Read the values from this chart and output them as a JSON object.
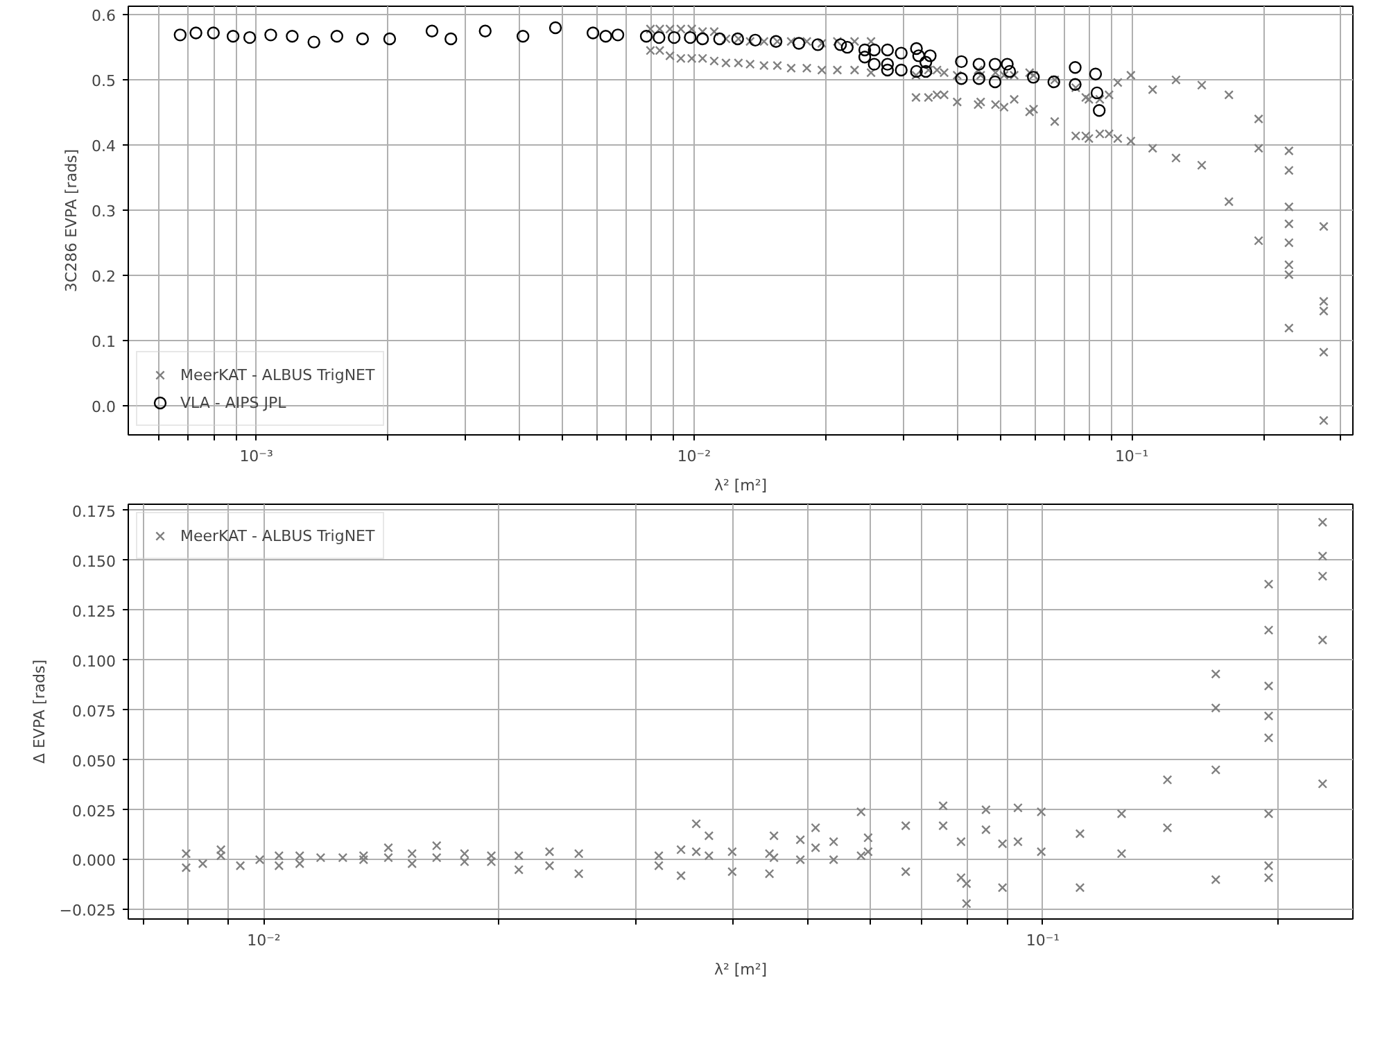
{
  "chart_data": [
    {
      "type": "scatter",
      "xlabel": "λ² [m²]",
      "ylabel": "3C286 EVPA [rads]",
      "log": "x",
      "grid": true,
      "legend": "bottom left",
      "xlim": [
        0.00051,
        0.32
      ],
      "ylim": [
        -0.045,
        0.613
      ],
      "xticks": [
        {
          "value": 0.0006,
          "label": null
        },
        {
          "value": 0.0007,
          "label": null
        },
        {
          "value": 0.0008,
          "label": null
        },
        {
          "value": 0.0009,
          "label": null
        },
        {
          "value": 0.001,
          "label": "10⁻³"
        },
        {
          "value": 0.002,
          "label": null
        },
        {
          "value": 0.003,
          "label": null
        },
        {
          "value": 0.004,
          "label": null
        },
        {
          "value": 0.005,
          "label": null
        },
        {
          "value": 0.006,
          "label": null
        },
        {
          "value": 0.007,
          "label": null
        },
        {
          "value": 0.008,
          "label": null
        },
        {
          "value": 0.009,
          "label": null
        },
        {
          "value": 0.01,
          "label": "10⁻²"
        },
        {
          "value": 0.02,
          "label": null
        },
        {
          "value": 0.03,
          "label": null
        },
        {
          "value": 0.04,
          "label": null
        },
        {
          "value": 0.05,
          "label": null
        },
        {
          "value": 0.06,
          "label": null
        },
        {
          "value": 0.07,
          "label": null
        },
        {
          "value": 0.08,
          "label": null
        },
        {
          "value": 0.09,
          "label": null
        },
        {
          "value": 0.1,
          "label": "10⁻¹"
        },
        {
          "value": 0.2,
          "label": null
        },
        {
          "value": 0.3,
          "label": null
        }
      ],
      "yticks": [
        {
          "value": 0,
          "label": "0.0"
        },
        {
          "value": 0.1,
          "label": "0.1"
        },
        {
          "value": 0.2,
          "label": "0.2"
        },
        {
          "value": 0.3,
          "label": "0.3"
        },
        {
          "value": 0.4,
          "label": "0.4"
        },
        {
          "value": 0.5,
          "label": "0.5"
        },
        {
          "value": 0.6,
          "label": "0.6"
        }
      ],
      "series": [
        {
          "name": "MeerKAT - ALBUS TrigNET",
          "color": "#808080",
          "marker": "cross",
          "x": [
            0.00795,
            0.00795,
            0.00835,
            0.00835,
            0.00881,
            0.00881,
            0.00933,
            0.00933,
            0.00988,
            0.00988,
            0.01046,
            0.01046,
            0.01112,
            0.01112,
            0.01183,
            0.01183,
            0.01263,
            0.01263,
            0.01343,
            0.01343,
            0.01445,
            0.01445,
            0.0155,
            0.0155,
            0.01667,
            0.01667,
            0.0181,
            0.0181,
            0.01959,
            0.01959,
            0.02125,
            0.02125,
            0.02327,
            0.02327,
            0.02537,
            0.02537,
            0.03214,
            0.03214,
            0.03432,
            0.03432,
            0.0359,
            0.0359,
            0.03727,
            0.03727,
            0.03992,
            0.03992,
            0.04457,
            0.04457,
            0.04517,
            0.04517,
            0.04883,
            0.04883,
            0.05108,
            0.05108,
            0.05388,
            0.05388,
            0.05843,
            0.05843,
            0.05966,
            0.05966,
            0.06668,
            0.06668,
            0.07447,
            0.07447,
            0.07852,
            0.07852,
            0.0798,
            0.0798,
            0.08452,
            0.08452,
            0.08875,
            0.08875,
            0.0929,
            0.0929,
            0.09954,
            0.09954,
            0.1116,
            0.1116,
            0.1262,
            0.1262,
            0.1445,
            0.1445,
            0.1667,
            0.1667,
            0.1949,
            0.1949,
            0.1949,
            0.2286,
            0.2286,
            0.2286,
            0.2286,
            0.2286,
            0.2286,
            0.2286,
            0.2286,
            0.2745,
            0.2745,
            0.2745,
            0.2745,
            0.2745
          ],
          "values": [
            0.578,
            0.545,
            0.578,
            0.545,
            0.578,
            0.537,
            0.578,
            0.533,
            0.578,
            0.533,
            0.574,
            0.533,
            0.574,
            0.529,
            0.563,
            0.526,
            0.563,
            0.526,
            0.559,
            0.524,
            0.559,
            0.522,
            0.559,
            0.522,
            0.559,
            0.518,
            0.559,
            0.518,
            0.556,
            0.515,
            0.559,
            0.515,
            0.559,
            0.515,
            0.559,
            0.511,
            0.507,
            0.473,
            0.515,
            0.473,
            0.515,
            0.477,
            0.511,
            0.477,
            0.507,
            0.466,
            0.515,
            0.462,
            0.507,
            0.466,
            0.511,
            0.462,
            0.507,
            0.458,
            0.507,
            0.47,
            0.511,
            0.451,
            0.507,
            0.455,
            0.5,
            0.436,
            0.488,
            0.414,
            0.473,
            0.414,
            0.47,
            0.41,
            0.47,
            0.417,
            0.477,
            0.417,
            0.496,
            0.41,
            0.507,
            0.406,
            0.485,
            0.395,
            0.5,
            0.38,
            0.492,
            0.369,
            0.477,
            0.313,
            0.44,
            0.395,
            0.253,
            0.391,
            0.361,
            0.305,
            0.279,
            0.25,
            0.216,
            0.201,
            0.119,
            0.275,
            0.16,
            0.145,
            0.082,
            -0.023
          ]
        },
        {
          "name": "VLA - AIPS JPL",
          "color": "#000000",
          "marker": "circle",
          "x": [
            0.00067,
            0.000728,
            0.000798,
            0.000885,
            0.000966,
            0.001079,
            0.001208,
            0.001354,
            0.001528,
            0.001749,
            0.002017,
            0.00252,
            0.002783,
            0.003334,
            0.004066,
            0.004824,
            0.005877,
            0.006285,
            0.006699,
            0.00778,
            0.008318,
            0.009006,
            0.009802,
            0.01046,
            0.01144,
            0.01258,
            0.0138,
            0.01539,
            0.01736,
            0.01918,
            0.02161,
            0.02239,
            0.02455,
            0.02455,
            0.0258,
            0.0258,
            0.02767,
            0.02767,
            0.02767,
            0.02974,
            0.02974,
            0.03222,
            0.0326,
            0.03222,
            0.03385,
            0.03385,
            0.03463,
            0.04081,
            0.04081,
            0.04477,
            0.04477,
            0.04872,
            0.04872,
            0.05195,
            0.05261,
            0.0596,
            0.06637,
            0.07426,
            0.07426,
            0.08266,
            0.0833,
            0.08427
          ],
          "values": [
            0.569,
            0.572,
            0.572,
            0.567,
            0.565,
            0.569,
            0.567,
            0.558,
            0.567,
            0.563,
            0.563,
            0.575,
            0.563,
            0.575,
            0.567,
            0.58,
            0.572,
            0.567,
            0.569,
            0.567,
            0.565,
            0.565,
            0.565,
            0.563,
            0.563,
            0.563,
            0.561,
            0.559,
            0.556,
            0.554,
            0.554,
            0.55,
            0.546,
            0.535,
            0.546,
            0.524,
            0.546,
            0.524,
            0.515,
            0.541,
            0.515,
            0.548,
            0.537,
            0.513,
            0.513,
            0.527,
            0.537,
            0.528,
            0.502,
            0.524,
            0.502,
            0.524,
            0.497,
            0.524,
            0.513,
            0.504,
            0.497,
            0.519,
            0.493,
            0.509,
            0.48,
            0.453
          ]
        }
      ]
    },
    {
      "type": "scatter",
      "xlabel": "λ² [m²]",
      "ylabel": "Δ EVPA [rads]",
      "log": "x",
      "grid": true,
      "legend": "top left",
      "xlim": [
        0.0067,
        0.25
      ],
      "ylim": [
        -0.0297,
        0.178
      ],
      "xticks": [
        {
          "value": 0.007,
          "label": null
        },
        {
          "value": 0.008,
          "label": null
        },
        {
          "value": 0.009,
          "label": null
        },
        {
          "value": 0.01,
          "label": "10⁻²"
        },
        {
          "value": 0.02,
          "label": null
        },
        {
          "value": 0.03,
          "label": null
        },
        {
          "value": 0.04,
          "label": null
        },
        {
          "value": 0.05,
          "label": null
        },
        {
          "value": 0.06,
          "label": null
        },
        {
          "value": 0.07,
          "label": null
        },
        {
          "value": 0.08,
          "label": null
        },
        {
          "value": 0.09,
          "label": null
        },
        {
          "value": 0.1,
          "label": "10⁻¹"
        },
        {
          "value": 0.2,
          "label": null
        }
      ],
      "yticks": [
        {
          "value": -0.025,
          "label": "−0.025"
        },
        {
          "value": 0,
          "label": "0.000"
        },
        {
          "value": 0.025,
          "label": "0.025"
        },
        {
          "value": 0.05,
          "label": "0.050"
        },
        {
          "value": 0.075,
          "label": "0.075"
        },
        {
          "value": 0.1,
          "label": "0.100"
        },
        {
          "value": 0.125,
          "label": "0.125"
        },
        {
          "value": 0.15,
          "label": "0.150"
        },
        {
          "value": 0.175,
          "label": "0.175"
        }
      ],
      "series": [
        {
          "name": "MeerKAT - ALBUS TrigNET",
          "color": "#808080",
          "marker": "cross",
          "x": [
            0.00795,
            0.00795,
            0.00835,
            0.00881,
            0.00881,
            0.00933,
            0.00988,
            0.01046,
            0.01046,
            0.01112,
            0.01112,
            0.01183,
            0.01263,
            0.01343,
            0.01343,
            0.01445,
            0.01445,
            0.0155,
            0.0155,
            0.01667,
            0.01667,
            0.0181,
            0.0181,
            0.01959,
            0.01959,
            0.02125,
            0.02125,
            0.02327,
            0.02327,
            0.02537,
            0.02537,
            0.03214,
            0.03214,
            0.03432,
            0.03432,
            0.0359,
            0.0359,
            0.03727,
            0.03727,
            0.03992,
            0.03992,
            0.04457,
            0.04457,
            0.04517,
            0.04517,
            0.04883,
            0.04883,
            0.05108,
            0.05108,
            0.05388,
            0.05388,
            0.05843,
            0.05843,
            0.05966,
            0.05966,
            0.06668,
            0.06668,
            0.07447,
            0.07447,
            0.07852,
            0.07852,
            0.0798,
            0.0798,
            0.08452,
            0.08452,
            0.08875,
            0.08875,
            0.0929,
            0.0929,
            0.09954,
            0.09954,
            0.1116,
            0.1116,
            0.1262,
            0.1262,
            0.1445,
            0.1445,
            0.1667,
            0.1667,
            0.1667,
            0.1667,
            0.1949,
            0.1949,
            0.1949,
            0.1949,
            0.1949,
            0.1949,
            0.1949,
            0.1949,
            0.2286,
            0.2286,
            0.2286,
            0.2286,
            0.2286
          ],
          "values": [
            0.003,
            -0.004,
            -0.002,
            0.005,
            0.002,
            -0.003,
            0.0,
            0.002,
            -0.003,
            0.002,
            -0.002,
            0.001,
            0.001,
            0.002,
            0.0,
            0.006,
            0.001,
            0.003,
            -0.002,
            0.007,
            0.001,
            0.003,
            -0.001,
            0.002,
            -0.001,
            0.002,
            -0.005,
            0.004,
            -0.003,
            0.003,
            -0.007,
            0.002,
            -0.003,
            0.005,
            -0.008,
            0.018,
            0.004,
            0.012,
            0.002,
            0.004,
            -0.006,
            0.003,
            -0.007,
            0.012,
            0.001,
            0.01,
            0.0,
            0.016,
            0.006,
            0.009,
            0.0,
            0.024,
            0.002,
            0.011,
            0.004,
            0.017,
            -0.006,
            0.027,
            0.017,
            0.009,
            -0.009,
            -0.012,
            -0.022,
            0.025,
            0.015,
            0.008,
            -0.014,
            0.026,
            0.009,
            0.024,
            0.004,
            0.013,
            -0.014,
            0.023,
            0.003,
            0.04,
            0.016,
            0.093,
            0.076,
            0.045,
            -0.01,
            0.138,
            0.115,
            0.087,
            0.072,
            0.061,
            0.023,
            -0.003,
            -0.009,
            0.169,
            0.152,
            0.142,
            0.11,
            0.038
          ]
        }
      ]
    }
  ]
}
